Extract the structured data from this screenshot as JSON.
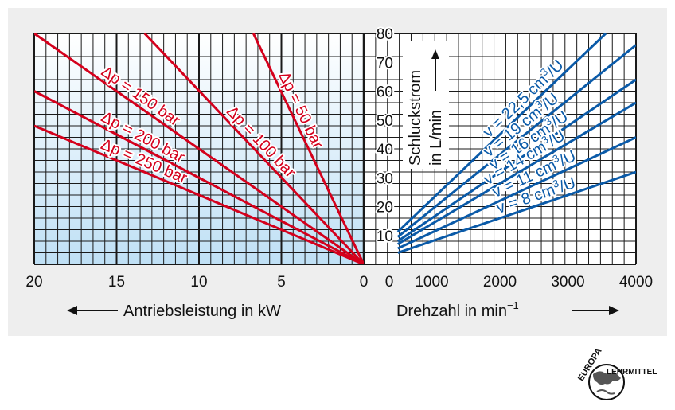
{
  "colors": {
    "pressure_lines": "#d4001c",
    "displacement_lines": "#0a5aa8",
    "panel_background": "#eeeeee",
    "grid": "#1a1a1a",
    "shade": "#bfe0f5"
  },
  "chart_data": [
    {
      "type": "line",
      "panel": "left",
      "xlabel": "Antriebsleistung in kW",
      "xlim": [
        20,
        0
      ],
      "ylim": [
        0,
        80
      ],
      "xticks": [
        "20",
        "15",
        "10",
        "5",
        "0"
      ],
      "series": [
        {
          "name": "Δp = 50 bar",
          "label_main": "Δp = 50 bar",
          "x": [
            0,
            6.7
          ],
          "y": [
            0,
            80
          ]
        },
        {
          "name": "Δp = 100 bar",
          "label_main": "Δp = 100 bar",
          "x": [
            0,
            13.3
          ],
          "y": [
            0,
            80
          ]
        },
        {
          "name": "Δp = 150 bar",
          "label_main": "Δp = 150 bar",
          "x": [
            0,
            20
          ],
          "y": [
            0,
            80
          ]
        },
        {
          "name": "Δp = 200 bar",
          "label_main": "Δp = 200 bar",
          "x": [
            0,
            20
          ],
          "y": [
            0,
            60
          ]
        },
        {
          "name": "Δp = 250 bar",
          "label_main": "Δp = 250 bar",
          "x": [
            0,
            20
          ],
          "y": [
            0,
            48
          ]
        }
      ]
    },
    {
      "type": "line",
      "panel": "right",
      "xlabel_main": "Drehzahl in min",
      "xlabel_sup": "−1",
      "ylabel_line1": "Schluckstrom",
      "ylabel_line2": "in L/min",
      "xlim": [
        0,
        4000
      ],
      "ylim": [
        0,
        80
      ],
      "xticks": [
        "0",
        "1000",
        "2000",
        "3000",
        "4000"
      ],
      "yticks": [
        "10",
        "20",
        "30",
        "40",
        "50",
        "60",
        "70",
        "80"
      ],
      "series": [
        {
          "name": "v = 22,5 cm³/U",
          "label_main": "v = 22,5 cm",
          "label_sup": "3",
          "label_end": "/U",
          "x": [
            500,
            3556
          ],
          "y": [
            11.25,
            80
          ]
        },
        {
          "name": "v = 19 cm³/U",
          "label_main": "v = 19 cm",
          "label_sup": "3",
          "label_end": "/U",
          "x": [
            500,
            4000
          ],
          "y": [
            9.5,
            76
          ]
        },
        {
          "name": "v = 16 cm³/U",
          "label_main": "v = 16 cm",
          "label_sup": "3",
          "label_end": "/U",
          "x": [
            500,
            4000
          ],
          "y": [
            8,
            64
          ]
        },
        {
          "name": "v = 14 cm³/U",
          "label_main": "v = 14 cm",
          "label_sup": "3",
          "label_end": "/U",
          "x": [
            500,
            4000
          ],
          "y": [
            7,
            56
          ]
        },
        {
          "name": "v = 11 cm³/U",
          "label_main": "v = 11 cm",
          "label_sup": "3",
          "label_end": "/U",
          "x": [
            500,
            4000
          ],
          "y": [
            5.5,
            44
          ]
        },
        {
          "name": "v = 8 cm³/U",
          "label_main": "v = 8 cm",
          "label_sup": "3",
          "label_end": "/U",
          "x": [
            500,
            4000
          ],
          "y": [
            4,
            32
          ]
        }
      ]
    }
  ],
  "logo": {
    "icon": "europa-lehrmittel-globe-logo",
    "top_text": "EUROPA",
    "side_text": "LEHRMITTEL"
  }
}
